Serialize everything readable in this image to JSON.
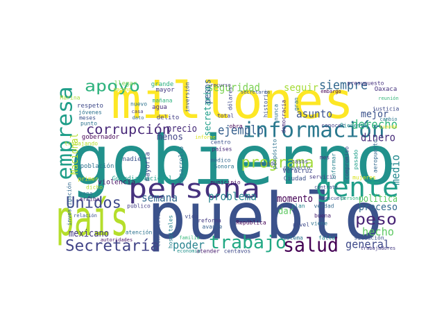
{
  "words": [
    {
      "text": "gobierno",
      "color": "#21918c"
    },
    {
      "text": "millones",
      "color": "#fde725"
    },
    {
      "text": "pueblo",
      "color": "#3b528b"
    },
    {
      "text": "país",
      "color": "#b5de2b"
    },
    {
      "text": "empresa",
      "color": "#1f9e89"
    },
    {
      "text": "persona",
      "color": "#46327e"
    },
    {
      "text": "gente",
      "color": "#1f9e89"
    },
    {
      "text": "información",
      "color": "#2a788e"
    },
    {
      "text": "corrupción",
      "color": "#482878"
    },
    {
      "text": "apoyo",
      "color": "#2db27d"
    },
    {
      "text": "seguridad",
      "color": "#7ad151"
    },
    {
      "text": "seguir",
      "color": "#a5db36"
    },
    {
      "text": "siempre",
      "color": "#31688e"
    },
    {
      "text": "programa",
      "color": "#a0da39"
    },
    {
      "text": "trabajo",
      "color": "#22a884"
    },
    {
      "text": "salud",
      "color": "#440154"
    },
    {
      "text": "Secretaría",
      "color": "#414487"
    },
    {
      "text": "Unidos",
      "color": "#3e4989"
    },
    {
      "text": "semana",
      "color": "#31688e"
    },
    {
      "text": "poder",
      "color": "#26828e"
    },
    {
      "text": "peso",
      "color": "#482475"
    },
    {
      "text": "hecho",
      "color": "#5ec962"
    },
    {
      "text": "general",
      "color": "#3e4989"
    },
    {
      "text": "derecho",
      "color": "#2fb47c"
    },
    {
      "text": "dinero",
      "color": "#472c7a"
    },
    {
      "text": "mejor",
      "color": "#3b528b"
    },
    {
      "text": "asunto",
      "color": "#3b528b"
    },
    {
      "text": "ejemplo",
      "color": "#355f8d"
    },
    {
      "text": "precio",
      "color": "#472c7a"
    },
    {
      "text": "menos",
      "color": "#414487"
    },
    {
      "text": "problema",
      "color": "#26828e"
    },
    {
      "text": "momento",
      "color": "#440154"
    },
    {
      "text": "proceso",
      "color": "#31688e"
    },
    {
      "text": "política",
      "color": "#5ec962"
    },
    {
      "text": "medio",
      "color": "#23898e"
    },
    {
      "text": "mexicano",
      "color": "#443983"
    },
    {
      "text": "Nacional",
      "color": "#b5de2b"
    },
    {
      "text": "secretario",
      "color": "#1f9e89"
    },
    {
      "text": "pesos",
      "color": "#355f8d"
    },
    {
      "text": "dar",
      "color": "#5ec962"
    },
    {
      "text": "Veracruz",
      "color": "#3e4989"
    },
    {
      "text": "Ciudad",
      "color": "#3b528b"
    },
    {
      "text": "presupuesto",
      "color": "#46327e"
    },
    {
      "text": "Oaxaca",
      "color": "#46327e"
    },
    {
      "text": "embargo",
      "color": "#440154"
    },
    {
      "text": "secretaria",
      "color": "#38588c"
    },
    {
      "text": "recurso",
      "color": "#443983"
    },
    {
      "text": "reunión",
      "color": "#35b779"
    },
    {
      "text": "justicia",
      "color": "#3e4989"
    },
    {
      "text": "cambio",
      "color": "#2a788e"
    },
    {
      "text": "cuando",
      "color": "#fde725"
    },
    {
      "text": "conocer",
      "color": "#433e85"
    },
    {
      "text": "Bienestar",
      "color": "#238a8d"
    },
    {
      "text": "llegar",
      "color": "#7ad151"
    },
    {
      "text": "grande",
      "color": "#29af7f"
    },
    {
      "text": "vacuna",
      "color": "#d8e219"
    },
    {
      "text": "mayor",
      "color": "#443983"
    },
    {
      "text": "Marina",
      "color": "#a5db36"
    },
    {
      "text": "respeto",
      "color": "#3e4989"
    },
    {
      "text": "jóvenes",
      "color": "#2c728e"
    },
    {
      "text": "meses",
      "color": "#3b528b"
    },
    {
      "text": "punto",
      "color": "#2c728e"
    },
    {
      "text": "mañana",
      "color": "#2db27d"
    },
    {
      "text": "agua",
      "color": "#472c7a"
    },
    {
      "text": "delito",
      "color": "#433e85"
    },
    {
      "text": "nuevo",
      "color": "#2c728e"
    },
    {
      "text": "casa",
      "color": "#443983"
    },
    {
      "text": "dato",
      "color": "#31688e"
    },
    {
      "text": "gobernador",
      "color": "#440154"
    },
    {
      "text": "trabajando",
      "color": "#b5de2b"
    },
    {
      "text": "población",
      "color": "#2c728e"
    },
    {
      "text": "nadie",
      "color": "#3b528b"
    },
    {
      "text": "mayoría",
      "color": "#3e4989"
    },
    {
      "text": "desarrollo",
      "color": "#2c728e"
    },
    {
      "text": "Guardia Nacional",
      "color": "#1f9e89"
    },
    {
      "text": "violencia",
      "color": "#471063"
    },
    {
      "text": "primer",
      "color": "#d8e219"
    },
    {
      "text": "dicho",
      "color": "#b5de2b"
    },
    {
      "text": "zona",
      "color": "#2c728e"
    },
    {
      "text": "arriba",
      "color": "#481f70"
    },
    {
      "text": "investigación",
      "color": "#31688e"
    },
    {
      "text": "relación",
      "color": "#3b528b"
    },
    {
      "text": "público",
      "color": "#433e85"
    },
    {
      "text": "atención",
      "color": "#2c728e"
    },
    {
      "text": "comunicación",
      "color": "#3b528b"
    },
    {
      "text": "hospitales",
      "color": "#26828e"
    },
    {
      "text": "vida",
      "color": "#3e4989"
    },
    {
      "text": "reforma",
      "color": "#443983"
    },
    {
      "text": "avance",
      "color": "#355f8d"
    },
    {
      "text": "familia",
      "color": "#35b779"
    },
    {
      "text": "atender",
      "color": "#481f70"
    },
    {
      "text": "centavos",
      "color": "#3e4989"
    },
    {
      "text": "economía",
      "color": "#21918c"
    },
    {
      "text": "autoridades",
      "color": "#471063"
    },
    {
      "text": "sistema",
      "color": "#2c728e"
    },
    {
      "text": "falta",
      "color": "#26828e"
    },
    {
      "text": "situación",
      "color": "#3b528b"
    },
    {
      "text": "trabajadores",
      "color": "#443983"
    },
    {
      "text": "República",
      "color": "#440154"
    },
    {
      "text": "nivel",
      "color": "#3e4989"
    },
    {
      "text": "buena",
      "color": "#481f70"
    },
    {
      "text": "viene",
      "color": "#2c728e"
    },
    {
      "text": "verdad",
      "color": "#31688e"
    },
    {
      "text": "plan",
      "color": "#26828e"
    },
    {
      "text": "contrato",
      "color": "#3e4989"
    },
    {
      "text": "mujeres",
      "color": "#d8e219"
    },
    {
      "text": "servicio",
      "color": "#443983"
    },
    {
      "text": "proyecto",
      "color": "#3b528b"
    },
    {
      "text": "casos",
      "color": "#3e4989"
    },
    {
      "text": "mes",
      "color": "#46327e"
    },
    {
      "text": "escuela",
      "color": "#3b528b"
    },
    {
      "text": "personal",
      "color": "#29af7f"
    },
    {
      "text": "pasado",
      "color": "#1f9e89"
    },
    {
      "text": "aeropuerto",
      "color": "#31688e"
    },
    {
      "text": "compromiso",
      "color": "#3e4989"
    },
    {
      "text": "informar",
      "color": "#26828e"
    },
    {
      "text": "municipio",
      "color": "#471063"
    },
    {
      "text": "Sonora",
      "color": "#2c728e"
    },
    {
      "text": "países",
      "color": "#482878"
    },
    {
      "text": "centro",
      "color": "#3b528b"
    },
    {
      "text": "obra",
      "color": "#440154"
    },
    {
      "text": "mundo",
      "color": "#3e4989"
    },
    {
      "text": "propósito",
      "color": "#2c728e"
    },
    {
      "text": "historia",
      "color": "#3b528b"
    },
    {
      "text": "nunca",
      "color": "#2c728e"
    },
    {
      "text": "democracia",
      "color": "#482878"
    },
    {
      "text": "gran",
      "color": "#2c728e"
    },
    {
      "text": "dólares",
      "color": "#3e4989"
    },
    {
      "text": "total",
      "color": "#433e85"
    },
    {
      "text": "informe",
      "color": "#d8e219"
    },
    {
      "text": "inversión",
      "color": "#3b528b"
    },
    {
      "text": "médico",
      "color": "#31688e"
    }
  ]
}
